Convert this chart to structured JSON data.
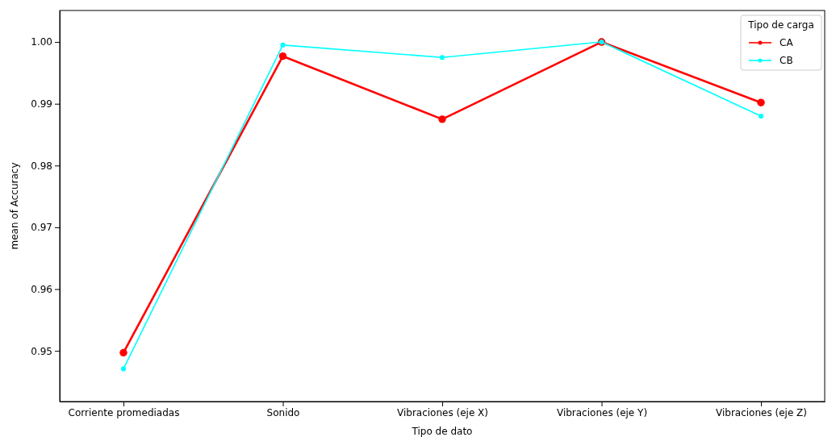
{
  "chart_data": {
    "type": "line",
    "xlabel": "Tipo de dato",
    "ylabel": "mean of Accuracy",
    "legend_title": "Tipo de carga",
    "categories": [
      "Corriente promediadas",
      "Sonido",
      "Vibraciones (eje X)",
      "Vibraciones (eje Y)",
      "Vibraciones (eje Z)"
    ],
    "series": [
      {
        "name": "CA",
        "color": "#ff0000",
        "values": [
          0.9497,
          0.9977,
          0.9875,
          1.0,
          0.9902
        ]
      },
      {
        "name": "CB",
        "color": "#00ffff",
        "values": [
          0.9471,
          0.9995,
          0.9975,
          1.0,
          0.988
        ]
      }
    ],
    "ylim": [
      0.9418,
      1.0051
    ],
    "yticks": [
      {
        "value": 0.95,
        "label": "0.95"
      },
      {
        "value": 0.96,
        "label": "0.96"
      },
      {
        "value": 0.97,
        "label": "0.97"
      },
      {
        "value": 0.98,
        "label": "0.98"
      },
      {
        "value": 0.99,
        "label": "0.99"
      },
      {
        "value": 1.0,
        "label": "1.00"
      }
    ],
    "grid": false,
    "legend": "top right",
    "marker": "circle",
    "line_style": "solid"
  }
}
